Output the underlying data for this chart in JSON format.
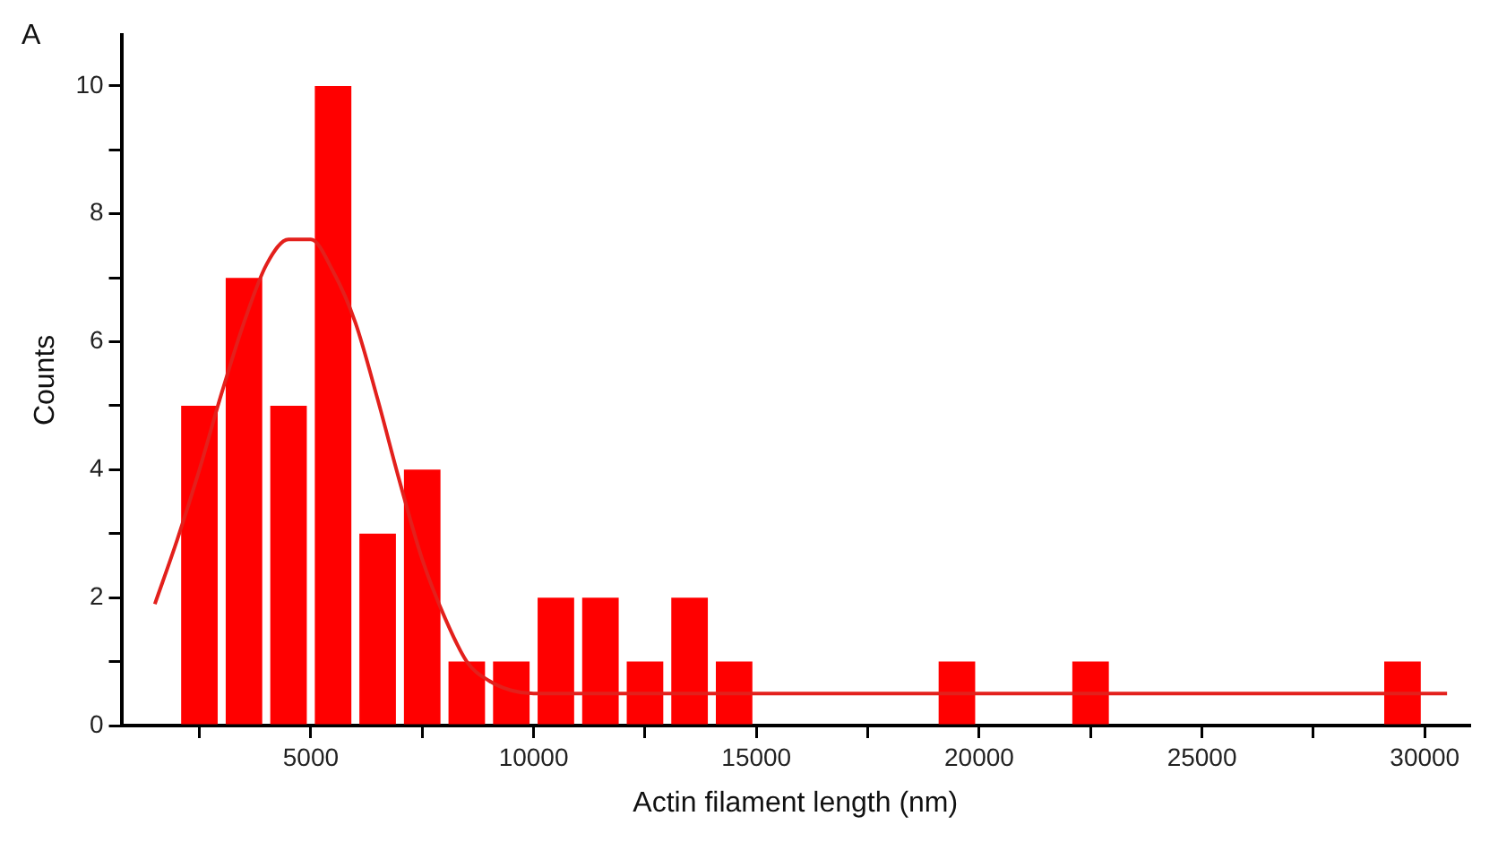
{
  "chart_data": {
    "type": "histogram",
    "xlabel": "Actin filament length (nm)",
    "ylabel": "Counts",
    "annotations": [
      "A"
    ],
    "bins": [
      2000,
      3000,
      4000,
      5000,
      6000,
      7000,
      8000,
      9000,
      10000,
      11000,
      12000,
      13000,
      14000,
      15000,
      16000,
      17000,
      18000,
      19000,
      20000,
      21000,
      22000,
      23000,
      24000,
      25000,
      26000,
      27000,
      28000,
      29000,
      30000
    ],
    "values": [
      5,
      7,
      5,
      10,
      3,
      4,
      1,
      1,
      2,
      2,
      1,
      2,
      1,
      0,
      0,
      0,
      0,
      1,
      0,
      0,
      1,
      0,
      0,
      0,
      0,
      0,
      0,
      1
    ],
    "color": "#ff0000",
    "series": [
      {
        "type": "line",
        "color": "#e3201c",
        "x": [
          1500,
          2000,
          2500,
          3000,
          3500,
          4000,
          4500,
          5000,
          5500,
          6000,
          6500,
          7000,
          7500,
          8000,
          8500,
          9000,
          9500,
          10000,
          12000,
          30500
        ],
        "values": [
          1.9,
          2.9,
          4.0,
          5.2,
          6.3,
          7.2,
          7.6,
          7.6,
          7.1,
          6.3,
          5.1,
          3.8,
          2.6,
          1.7,
          1.0,
          0.7,
          0.55,
          0.5,
          0.5,
          0.5
        ]
      }
    ],
    "xlim": [
      750,
      31000
    ],
    "xticks": [
      {
        "value": 2500,
        "label": null
      },
      5000,
      {
        "value": 7500,
        "label": null
      },
      10000,
      {
        "value": 12500,
        "label": null
      },
      15000,
      {
        "value": 17500,
        "label": null
      },
      20000,
      {
        "value": 22500,
        "label": null
      },
      25000,
      {
        "value": 27500,
        "label": null
      },
      30000
    ],
    "ylim": [
      0,
      10.8
    ],
    "yticks": [
      0,
      {
        "value": 1,
        "label": null
      },
      2,
      {
        "value": 3,
        "label": null
      },
      4,
      {
        "value": 5,
        "label": null
      },
      6,
      {
        "value": 7,
        "label": null
      },
      8,
      {
        "value": 9,
        "label": null
      },
      10
    ],
    "grid": false,
    "legend": false
  }
}
